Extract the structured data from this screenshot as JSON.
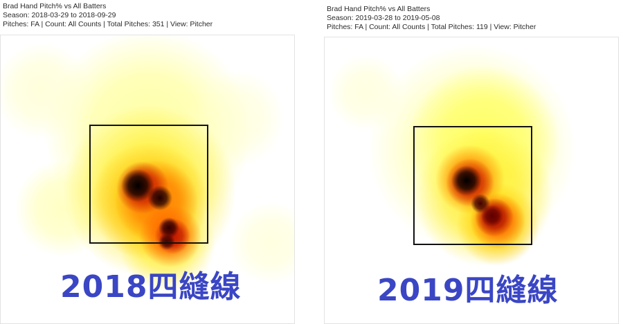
{
  "caption_color": "#3a46c4",
  "chart_data": [
    {
      "type": "heatmap",
      "title": "Brad Hand Pitch% vs All Batters",
      "season": "Season: 2018-03-29 to 2018-09-29",
      "filters": "Pitches: FA | Count: All Counts | Total Pitches: 351 | View: Pitcher",
      "caption": "2018四縫線",
      "colormap": [
        "#ffffff",
        "#ffff66",
        "#ffdd00",
        "#ff8800",
        "#e83000",
        "#a00000",
        "#000000"
      ],
      "strike_zone": true,
      "density_hotspots": [
        {
          "area": "upper-middle of zone (pitcher's left)",
          "level": "peak"
        },
        {
          "area": "lower right of zone",
          "level": "peak"
        },
        {
          "area": "surrounding zone",
          "level": "moderate"
        }
      ]
    },
    {
      "type": "heatmap",
      "title": "Brad Hand Pitch% vs All Batters",
      "season": "Season: 2019-03-28 to 2019-05-08",
      "filters": "Pitches: FA | Count: All Counts | Total Pitches: 119 | View: Pitcher",
      "caption": "2019四縫線",
      "colormap": [
        "#ffffff",
        "#ffff66",
        "#ffdd00",
        "#ff8800",
        "#e83000",
        "#a00000",
        "#000000"
      ],
      "strike_zone": true,
      "density_hotspots": [
        {
          "area": "upper-middle of zone",
          "level": "peak"
        },
        {
          "area": "lower right of zone",
          "level": "high"
        },
        {
          "area": "surrounding zone",
          "level": "moderate"
        }
      ]
    }
  ]
}
